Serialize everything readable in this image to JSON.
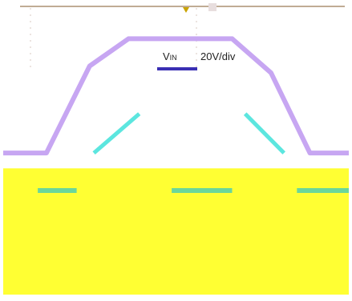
{
  "chart_data": {
    "type": "line",
    "label": {
      "name": "V",
      "subscript": "IN",
      "scale": "20V/div"
    },
    "x": [
      0,
      1.0,
      2.0,
      2.9,
      5.3,
      6.2,
      7.1,
      8.0
    ],
    "series": [
      {
        "role": "input-voltage",
        "color": "#c7a6f2",
        "values": [
          0.55,
          0.55,
          3.1,
          3.9,
          3.9,
          2.9,
          0.55,
          0.55
        ]
      },
      {
        "role": "output-rising",
        "color": "#5ce6df",
        "x": [
          2.1,
          3.15
        ],
        "values": [
          0.55,
          1.7
        ]
      },
      {
        "role": "output-falling",
        "color": "#5ce6df",
        "x": [
          5.6,
          6.5
        ],
        "values": [
          1.7,
          0.55
        ]
      },
      {
        "role": "low-level-trace",
        "color": "#6bd69b",
        "segments": [
          {
            "x": [
              0.8,
              1.7
            ],
            "values": [
              -0.55,
              -0.55
            ]
          },
          {
            "x": [
              3.9,
              5.3
            ],
            "values": [
              -0.55,
              -0.55
            ]
          },
          {
            "x": [
              6.8,
              8.0
            ],
            "values": [
              -0.55,
              -0.55
            ]
          }
        ]
      }
    ],
    "xlim": [
      0,
      8
    ],
    "ylim": [
      -3.6,
      4.8
    ],
    "fill_band": {
      "color": "#ffff33",
      "below": 0.1
    },
    "grid": false
  }
}
